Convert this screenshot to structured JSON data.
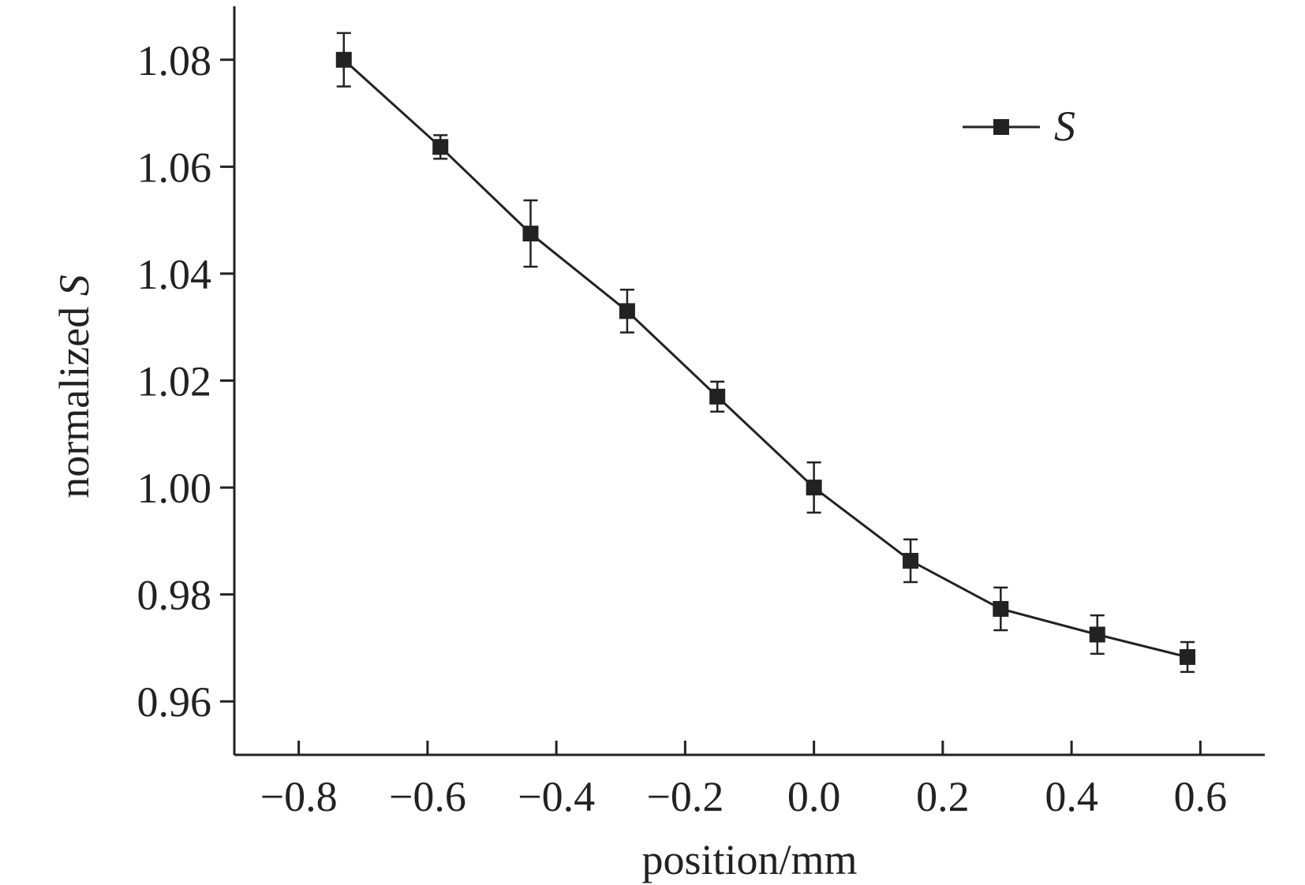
{
  "chart_data": {
    "type": "line",
    "title": "",
    "xlabel": "position/mm",
    "ylabel_prefix": "normalized ",
    "ylabel_var": "S",
    "xlim": [
      -0.9,
      0.7
    ],
    "ylim": [
      0.95,
      1.09
    ],
    "x_ticks": [
      -0.8,
      -0.6,
      -0.4,
      -0.2,
      0.0,
      0.2,
      0.4,
      0.6
    ],
    "x_tick_labels": [
      "−0.8",
      "−0.6",
      "−0.4",
      "−0.2",
      "0.0",
      "0.2",
      "0.4",
      "0.6"
    ],
    "y_ticks": [
      0.96,
      0.98,
      1.0,
      1.02,
      1.04,
      1.06,
      1.08
    ],
    "y_tick_labels": [
      "0.96",
      "0.98",
      "1.00",
      "1.02",
      "1.04",
      "1.06",
      "1.08"
    ],
    "grid": false,
    "legend_position": "top-right",
    "series": [
      {
        "name": "S",
        "marker": "square",
        "color": "#222222",
        "x": [
          -0.73,
          -0.58,
          -0.44,
          -0.29,
          -0.15,
          0.0,
          0.15,
          0.29,
          0.44,
          0.58
        ],
        "y": [
          1.08,
          1.0637,
          1.0475,
          1.033,
          1.017,
          1.0,
          0.9863,
          0.9773,
          0.9725,
          0.9683
        ],
        "err": [
          0.005,
          0.0022,
          0.0062,
          0.004,
          0.0028,
          0.0047,
          0.004,
          0.004,
          0.0036,
          0.0028
        ]
      }
    ]
  }
}
